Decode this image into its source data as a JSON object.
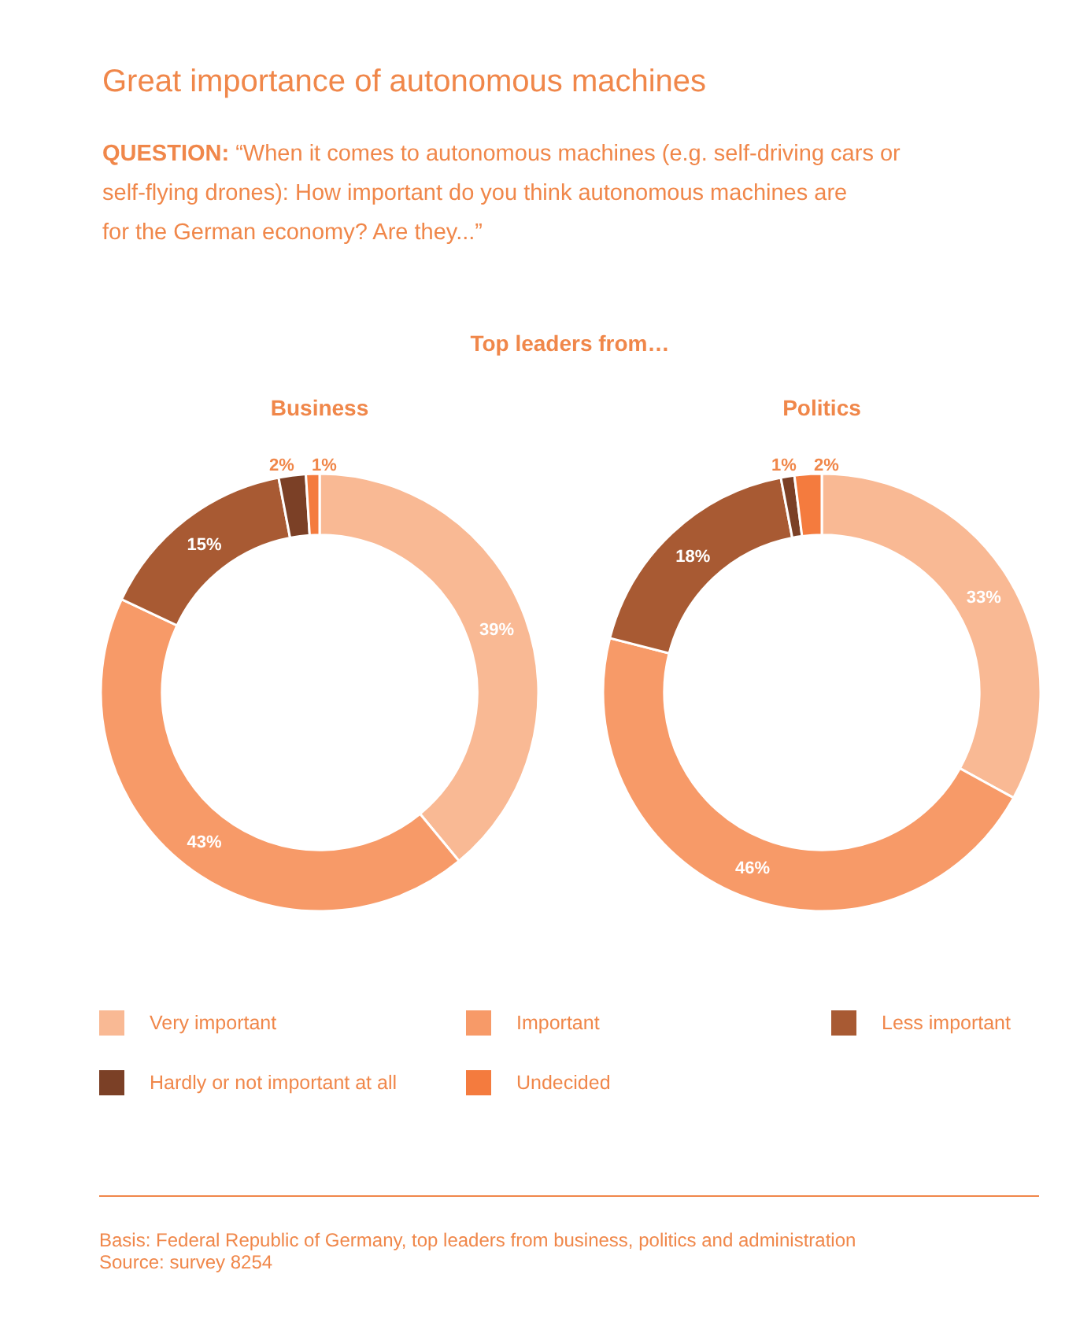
{
  "chart_data": {
    "type": "donut",
    "title": "Great importance of autonomous machines",
    "subtitle": "QUESTION: “When it comes to autonomous machines (e.g. self-driving cars or self-flying drones): How important do you think autonomous machines are for the German economy? Are they...”",
    "categories": [
      "Very important",
      "Important",
      "Less important",
      "Hardly or not important at all",
      "Undecided"
    ],
    "colors": [
      "#f9b994",
      "#f79a68",
      "#a85a33",
      "#7b4026",
      "#f47b3e"
    ],
    "legend": "bottom",
    "series": [
      {
        "name": "Business",
        "values": [
          39,
          43,
          15,
          2,
          1
        ],
        "value_labels": [
          "39%",
          "43%",
          "15%",
          "2%",
          "1%"
        ]
      },
      {
        "name": "Politics",
        "values": [
          33,
          46,
          18,
          1,
          2
        ],
        "value_labels": [
          "33%",
          "46%",
          "18%",
          "1%",
          "2%"
        ]
      }
    ],
    "annotations": [
      "Top leaders from…",
      "Basis: Federal Republic of Germany, top leaders from business, politics and administration",
      "Source: survey 8254"
    ]
  }
}
